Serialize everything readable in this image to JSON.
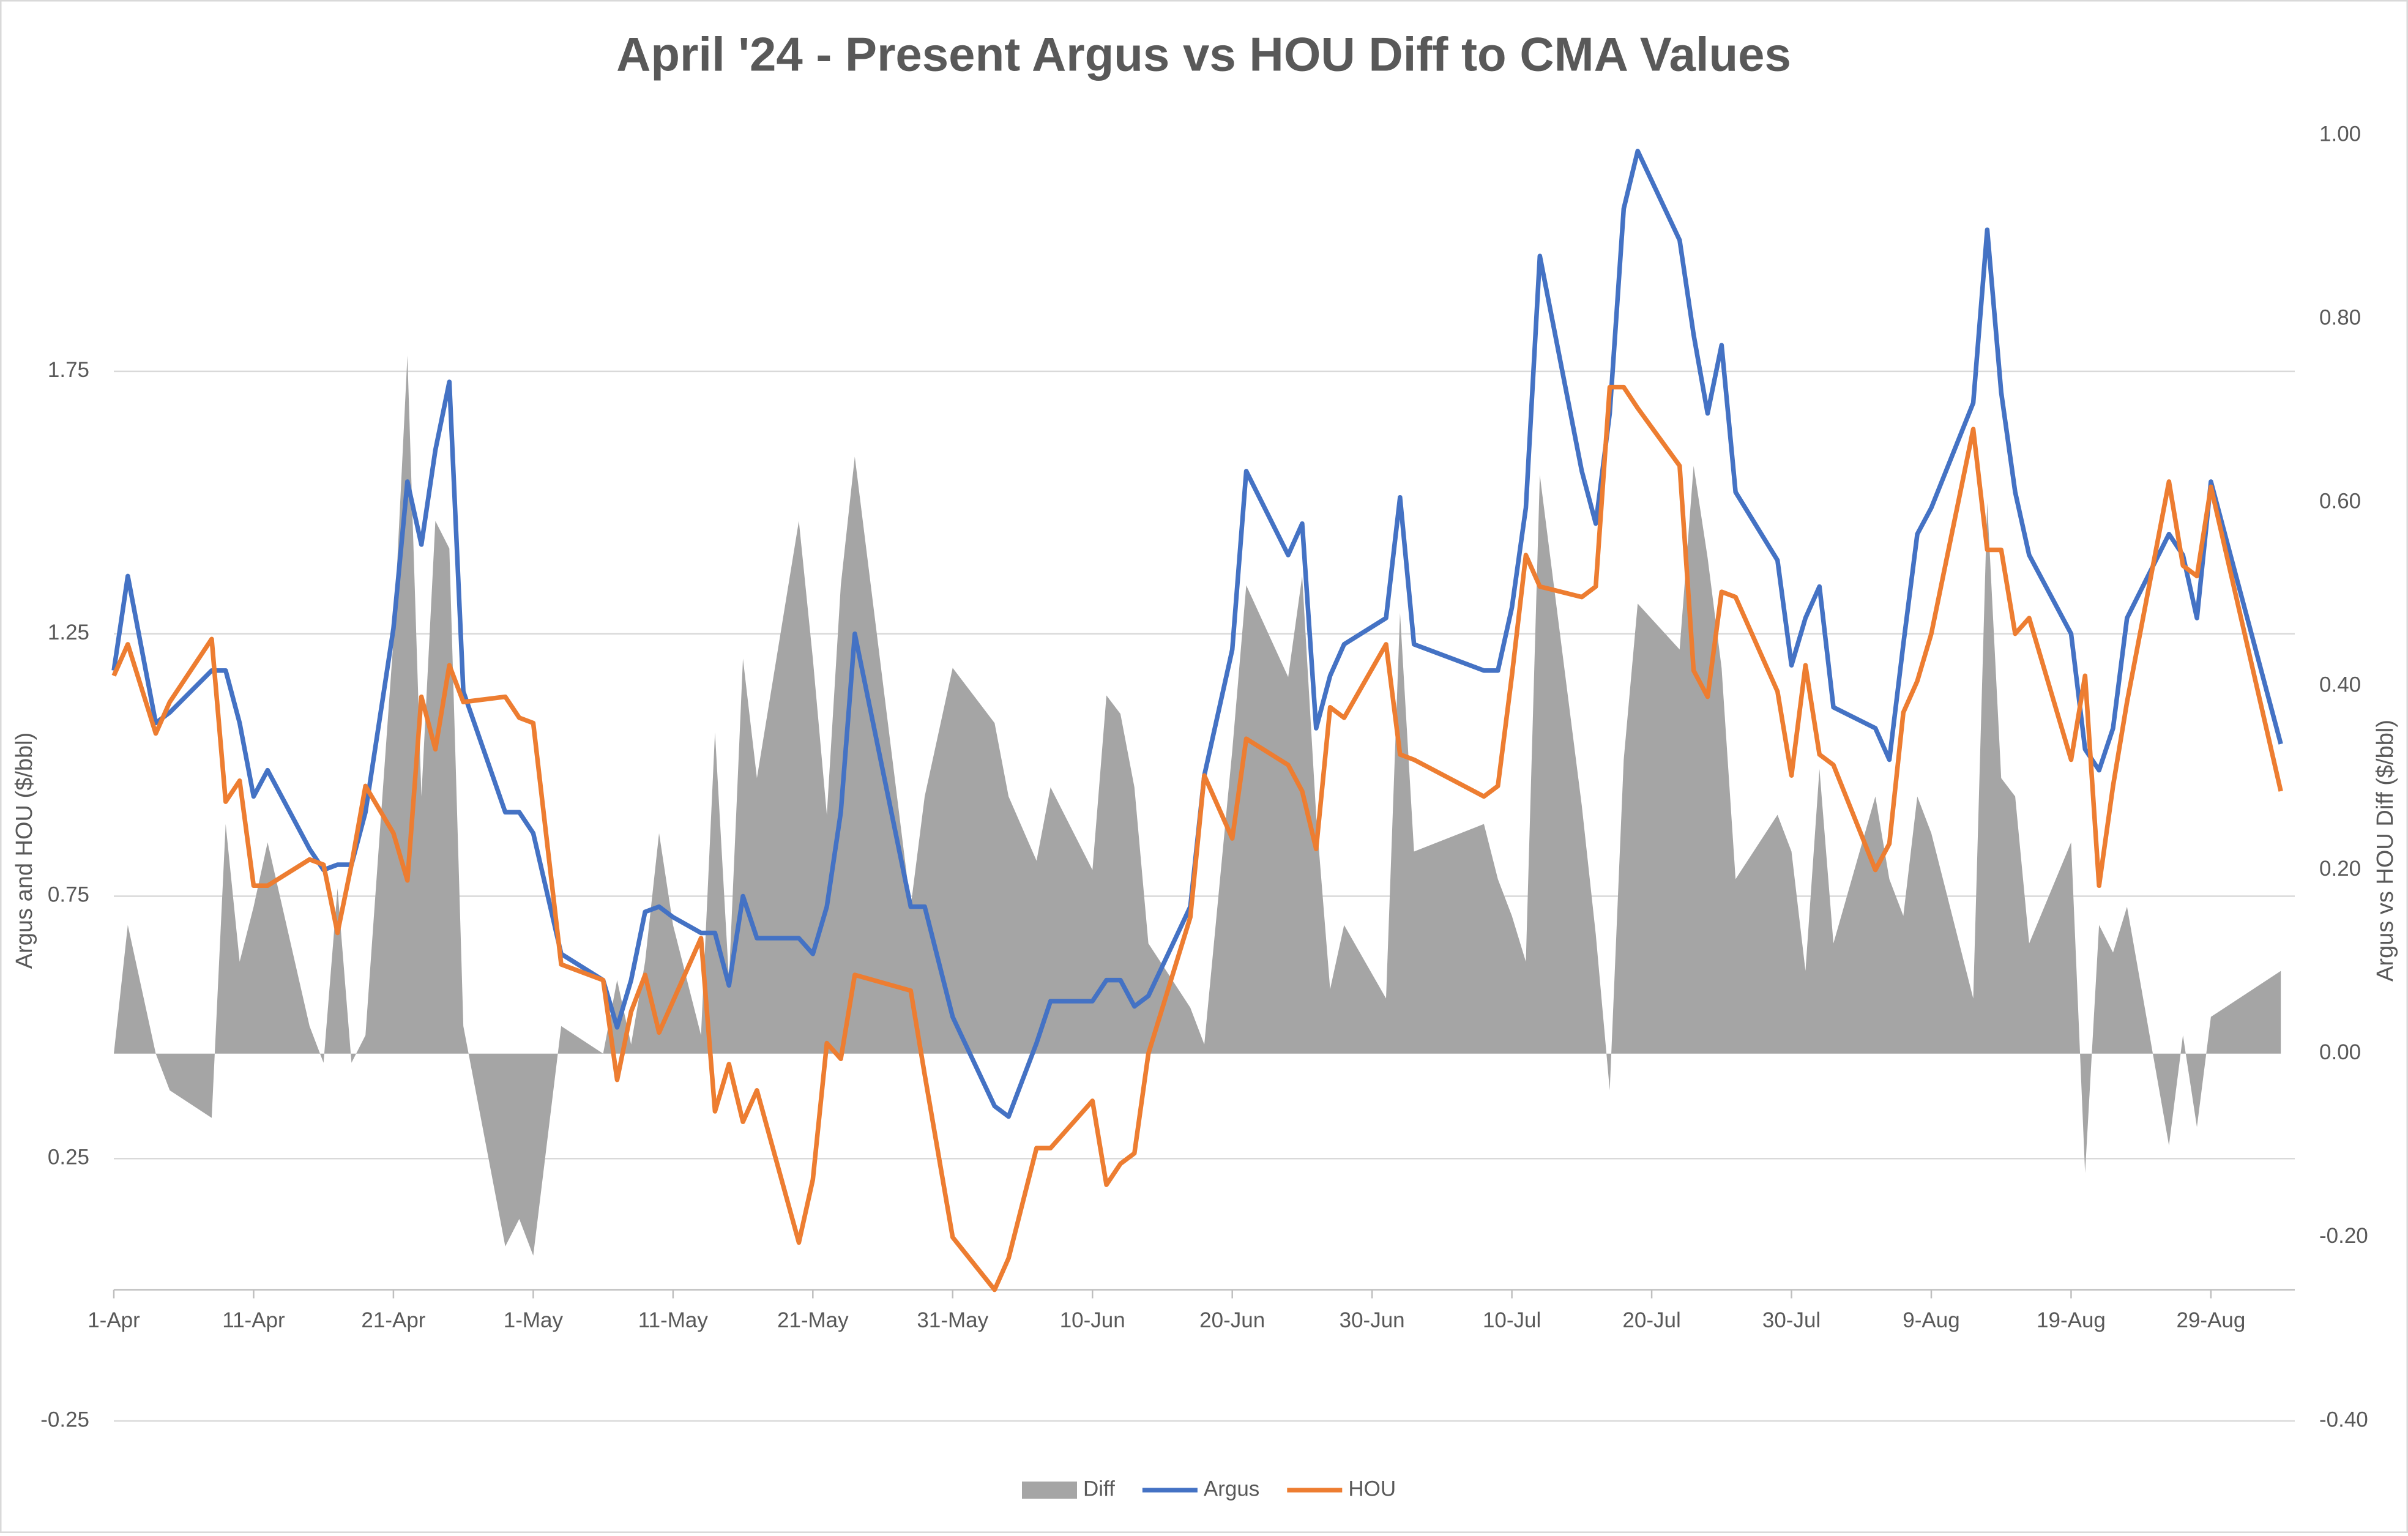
{
  "chart_data": {
    "type": "line",
    "title": "April '24 - Present Argus vs HOU Diff to CMA Values",
    "y_label": "Argus and HOU ($/bbl)",
    "y2_label": "Argus vs HOU Diff ($/bbl)",
    "x": [
      "1-Apr",
      "2-Apr",
      "4-Apr",
      "5-Apr",
      "8-Apr",
      "9-Apr",
      "10-Apr",
      "11-Apr",
      "12-Apr",
      "15-Apr",
      "16-Apr",
      "17-Apr",
      "18-Apr",
      "19-Apr",
      "21-Apr",
      "22-Apr",
      "23-Apr",
      "24-Apr",
      "25-Apr",
      "26-Apr",
      "29-Apr",
      "30-Apr",
      "1-May",
      "3-May",
      "6-May",
      "7-May",
      "8-May",
      "9-May",
      "10-May",
      "11-May",
      "13-May",
      "14-May",
      "15-May",
      "16-May",
      "17-May",
      "20-May",
      "21-May",
      "22-May",
      "23-May",
      "24-May",
      "28-May",
      "29-May",
      "31-May",
      "3-Jun",
      "4-Jun",
      "6-Jun",
      "7-Jun",
      "10-Jun",
      "11-Jun",
      "12-Jun",
      "13-Jun",
      "14-Jun",
      "17-Jun",
      "18-Jun",
      "20-Jun",
      "21-Jun",
      "24-Jun",
      "25-Jun",
      "26-Jun",
      "27-Jun",
      "28-Jun",
      "1-Jul",
      "2-Jul",
      "3-Jul",
      "8-Jul",
      "9-Jul",
      "10-Jul",
      "11-Jul",
      "12-Jul",
      "15-Jul",
      "16-Jul",
      "17-Jul",
      "18-Jul",
      "19-Jul",
      "22-Jul",
      "23-Jul",
      "24-Jul",
      "25-Jul",
      "26-Jul",
      "29-Jul",
      "30-Jul",
      "31-Jul",
      "1-Aug",
      "2-Aug",
      "5-Aug",
      "6-Aug",
      "7-Aug",
      "8-Aug",
      "9-Aug",
      "12-Aug",
      "13-Aug",
      "14-Aug",
      "15-Aug",
      "16-Aug",
      "19-Aug",
      "20-Aug",
      "21-Aug",
      "22-Aug",
      "23-Aug",
      "26-Aug",
      "27-Aug",
      "28-Aug",
      "29-Aug",
      "3-Sep"
    ],
    "series": [
      {
        "name": "Diff",
        "type": "area",
        "axis": "y2",
        "color": "#a5a5a5",
        "values": [
          0.0,
          0.14,
          0.0,
          -0.04,
          -0.07,
          0.25,
          0.1,
          0.16,
          0.23,
          0.03,
          -0.01,
          0.18,
          -0.01,
          0.02,
          0.45,
          0.76,
          0.28,
          0.58,
          0.55,
          0.03,
          -0.21,
          -0.18,
          -0.22,
          0.03,
          0.0,
          0.08,
          0.01,
          0.1,
          0.24,
          0.14,
          0.02,
          0.35,
          0.08,
          0.43,
          0.3,
          0.58,
          0.43,
          0.26,
          0.51,
          0.65,
          0.16,
          0.28,
          0.42,
          0.36,
          0.28,
          0.21,
          0.29,
          0.2,
          0.39,
          0.37,
          0.29,
          0.12,
          0.05,
          0.01,
          0.33,
          0.51,
          0.41,
          0.52,
          0.26,
          0.07,
          0.14,
          0.06,
          0.48,
          0.22,
          0.25,
          0.19,
          0.15,
          0.1,
          0.63,
          0.27,
          0.13,
          -0.04,
          0.32,
          0.49,
          0.44,
          0.64,
          0.54,
          0.42,
          0.19,
          0.26,
          0.22,
          0.09,
          0.31,
          0.12,
          0.28,
          0.19,
          0.15,
          0.28,
          0.24,
          0.06,
          0.6,
          0.3,
          0.28,
          0.12,
          0.23,
          -0.13,
          0.14,
          0.11,
          0.16,
          -0.1,
          0.02,
          -0.08,
          0.04,
          0.09
        ]
      },
      {
        "name": "Argus",
        "type": "line",
        "color": "#4472c4",
        "values": [
          1.18,
          1.36,
          1.08,
          1.1,
          1.18,
          1.18,
          1.08,
          0.94,
          0.99,
          0.84,
          0.8,
          0.81,
          0.81,
          0.91,
          1.26,
          1.54,
          1.42,
          1.6,
          1.73,
          1.14,
          0.91,
          0.91,
          0.87,
          0.64,
          0.59,
          0.5,
          0.59,
          0.72,
          0.73,
          0.71,
          0.68,
          0.68,
          0.58,
          0.75,
          0.67,
          0.67,
          0.64,
          0.73,
          0.91,
          1.25,
          0.73,
          0.73,
          0.52,
          0.35,
          0.33,
          0.47,
          0.55,
          0.55,
          0.59,
          0.59,
          0.54,
          0.56,
          0.73,
          0.98,
          1.22,
          1.56,
          1.4,
          1.46,
          1.07,
          1.17,
          1.23,
          1.28,
          1.51,
          1.23,
          1.18,
          1.18,
          1.3,
          1.49,
          1.97,
          1.56,
          1.46,
          1.67,
          2.06,
          2.17,
          2.0,
          1.82,
          1.67,
          1.8,
          1.52,
          1.39,
          1.19,
          1.28,
          1.34,
          1.11,
          1.07,
          1.01,
          1.23,
          1.44,
          1.49,
          1.69,
          2.02,
          1.71,
          1.52,
          1.4,
          1.25,
          1.03,
          0.99,
          1.07,
          1.28,
          1.44,
          1.4,
          1.28,
          1.54,
          1.04
        ]
      },
      {
        "name": "HOU",
        "type": "line",
        "color": "#ed7d31",
        "values": [
          1.17,
          1.23,
          1.06,
          1.12,
          1.24,
          0.93,
          0.97,
          0.77,
          0.77,
          0.82,
          0.81,
          0.68,
          0.81,
          0.96,
          0.87,
          0.78,
          1.13,
          1.03,
          1.19,
          1.12,
          1.13,
          1.09,
          1.08,
          0.62,
          0.59,
          0.4,
          0.53,
          0.6,
          0.49,
          0.55,
          0.67,
          0.34,
          0.43,
          0.32,
          0.38,
          0.09,
          0.21,
          0.47,
          0.44,
          0.6,
          0.57,
          0.41,
          0.1,
          0.0,
          0.06,
          0.27,
          0.27,
          0.36,
          0.2,
          0.24,
          0.26,
          0.45,
          0.71,
          0.98,
          0.86,
          1.05,
          1.0,
          0.95,
          0.84,
          1.11,
          1.09,
          1.23,
          1.02,
          1.01,
          0.94,
          0.96,
          1.17,
          1.4,
          1.34,
          1.32,
          1.34,
          1.72,
          1.72,
          1.68,
          1.57,
          1.18,
          1.13,
          1.33,
          1.32,
          1.14,
          0.98,
          1.19,
          1.02,
          1.0,
          0.8,
          0.85,
          1.1,
          1.16,
          1.25,
          1.64,
          1.41,
          1.41,
          1.25,
          1.28,
          1.01,
          1.17,
          0.77,
          0.96,
          1.12,
          1.54,
          1.38,
          1.36,
          1.53,
          0.95
        ]
      }
    ],
    "xlim": [
      "1-Apr",
      "4-Sep"
    ],
    "xticks": [
      "1-Apr",
      "11-Apr",
      "21-Apr",
      "1-May",
      "11-May",
      "21-May",
      "31-May",
      "10-Jun",
      "20-Jun",
      "30-Jun",
      "10-Jul",
      "20-Jul",
      "30-Jul",
      "9-Aug",
      "19-Aug",
      "29-Aug"
    ],
    "ylim": [
      -0.25,
      2.2
    ],
    "yticks": [
      -0.25,
      0.25,
      0.75,
      1.25,
      1.75
    ],
    "y2lim": [
      -0.4,
      1.0
    ],
    "y2ticks": [
      {
        "value": -0.4,
        "label": "-0.40"
      },
      {
        "value": -0.2,
        "label": "-0.20"
      },
      {
        "value": 0,
        "label": "0.00"
      },
      {
        "value": 0.2,
        "label": "0.20"
      },
      {
        "value": 0.4,
        "label": "0.40"
      },
      {
        "value": 0.6,
        "label": "0.60"
      },
      {
        "value": 0.8,
        "label": "0.80"
      },
      {
        "value": 1.0,
        "label": "1.00"
      }
    ],
    "grid": true,
    "legend": "bottom"
  }
}
